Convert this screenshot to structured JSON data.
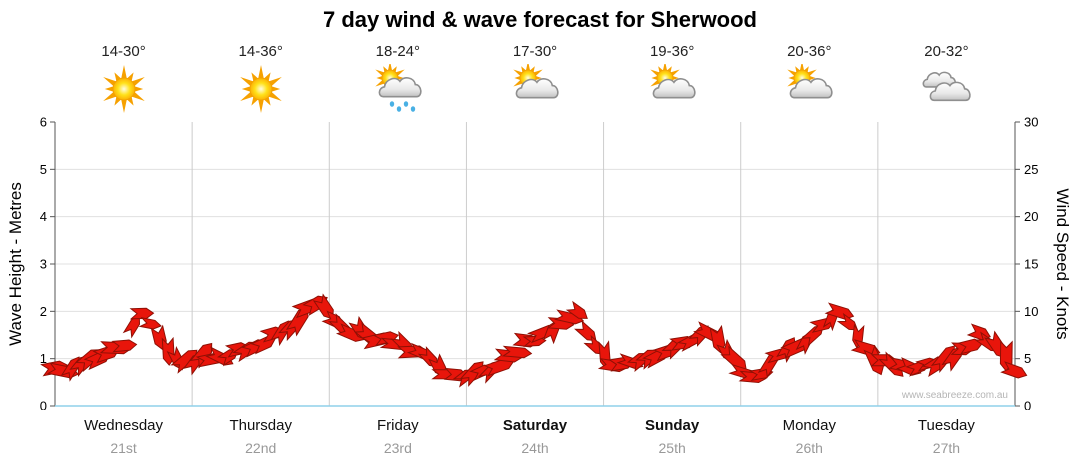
{
  "title": "7 day wind & wave forecast for Sherwood",
  "watermark": "www.seabreeze.com.au",
  "axes": {
    "left_label": "Wave Height - Metres",
    "right_label": "Wind Speed - Knots",
    "left_ticks": [
      "0",
      "1",
      "2",
      "3",
      "4",
      "5",
      "6"
    ],
    "right_ticks": [
      "0",
      "5",
      "10",
      "15",
      "20",
      "25",
      "30"
    ]
  },
  "days": [
    {
      "name": "Wednesday",
      "date": "21st",
      "temp": "14-30°",
      "icon": "sunny",
      "weekend": false
    },
    {
      "name": "Thursday",
      "date": "22nd",
      "temp": "14-36°",
      "icon": "sunny",
      "weekend": false
    },
    {
      "name": "Friday",
      "date": "23rd",
      "temp": "18-24°",
      "icon": "sun-showers",
      "weekend": false
    },
    {
      "name": "Saturday",
      "date": "24th",
      "temp": "17-30°",
      "icon": "partly-cloudy",
      "weekend": true
    },
    {
      "name": "Sunday",
      "date": "25th",
      "temp": "19-36°",
      "icon": "partly-cloudy",
      "weekend": true
    },
    {
      "name": "Monday",
      "date": "26th",
      "temp": "20-36°",
      "icon": "partly-cloudy",
      "weekend": false
    },
    {
      "name": "Tuesday",
      "date": "27th",
      "temp": "20-32°",
      "icon": "cloudy",
      "weekend": false
    }
  ],
  "chart_data": {
    "type": "line",
    "title": "7 day wind & wave forecast for Sherwood",
    "x_days": [
      "Wednesday 21st",
      "Thursday 22nd",
      "Friday 23rd",
      "Saturday 24th",
      "Sunday 25th",
      "Monday 26th",
      "Tuesday 27th"
    ],
    "samples_per_day": 8,
    "series": [
      {
        "name": "Wind speed (knots), drawn as overlapping red wind arrows",
        "values": [
          3.8,
          4.3,
          4.8,
          5.8,
          6.5,
          9.8,
          7.5,
          4.5,
          5.0,
          5.3,
          5.5,
          6.0,
          6.8,
          7.8,
          9.3,
          11.0,
          9.0,
          8.0,
          7.3,
          6.8,
          6.3,
          5.5,
          4.3,
          3.0,
          3.2,
          4.0,
          5.3,
          6.5,
          7.5,
          8.8,
          9.5,
          6.5,
          4.0,
          4.3,
          4.8,
          5.5,
          6.5,
          7.8,
          7.0,
          4.8,
          2.8,
          4.5,
          5.8,
          7.0,
          8.3,
          10.0,
          7.5,
          5.0,
          4.5,
          4.0,
          4.3,
          5.0,
          6.0,
          7.3,
          6.3,
          3.8
        ]
      }
    ],
    "ylabel_left": "Wave Height - Metres",
    "ylabel_right": "Wind Speed - Knots",
    "ylim_left_metres": [
      0,
      6
    ],
    "ylim_right_knots": [
      0,
      30
    ],
    "grid": true,
    "legend": false
  },
  "colors": {
    "arrow_fill": "#e8150b",
    "arrow_outline": "#8f1005",
    "gridline": "#e0e0e0",
    "day_separator": "#cccccc",
    "axis_line": "#555555",
    "zero_line": "#8fd0ea",
    "day_text": "#111111",
    "date_text": "#999999",
    "temp_text": "#222222",
    "watermark_text": "#b5b5b5"
  }
}
